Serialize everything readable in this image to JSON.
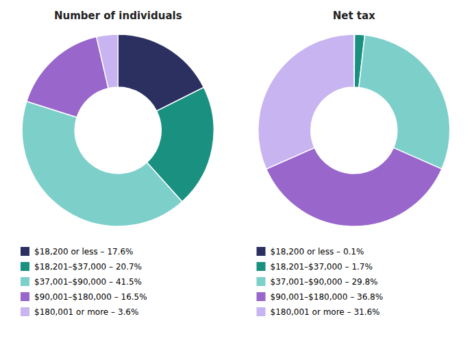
{
  "chart_data": [
    {
      "type": "donut",
      "title": "Number of individuals",
      "categories": [
        "$18,200 or less – 17.6%",
        "$18,201–$37,000 – 20.7%",
        "$37,001–$90,000 – 41.5%",
        "$90,001–$180,000 – 16.5%",
        "$180,001 or more – 3.6%"
      ],
      "values": [
        17.6,
        20.7,
        41.5,
        16.5,
        3.6
      ],
      "colors": [
        "#2b3060",
        "#1a9080",
        "#7dcfca",
        "#9966cc",
        "#c8b4f0"
      ],
      "legend": "bottom"
    },
    {
      "type": "donut",
      "title": "Net tax",
      "categories": [
        "$18,200 or less – 0.1%",
        "$18,201–$37,000 – 1.7%",
        "$37,001–$90,000 – 29.8%",
        "$90,001–$180,000 – 36.8%",
        "$180,001 or more – 31.6%"
      ],
      "values": [
        0.1,
        1.7,
        29.8,
        36.8,
        31.6
      ],
      "colors": [
        "#2b3060",
        "#1a9080",
        "#7dcfca",
        "#9966cc",
        "#c8b4f0"
      ],
      "legend": "bottom"
    }
  ]
}
